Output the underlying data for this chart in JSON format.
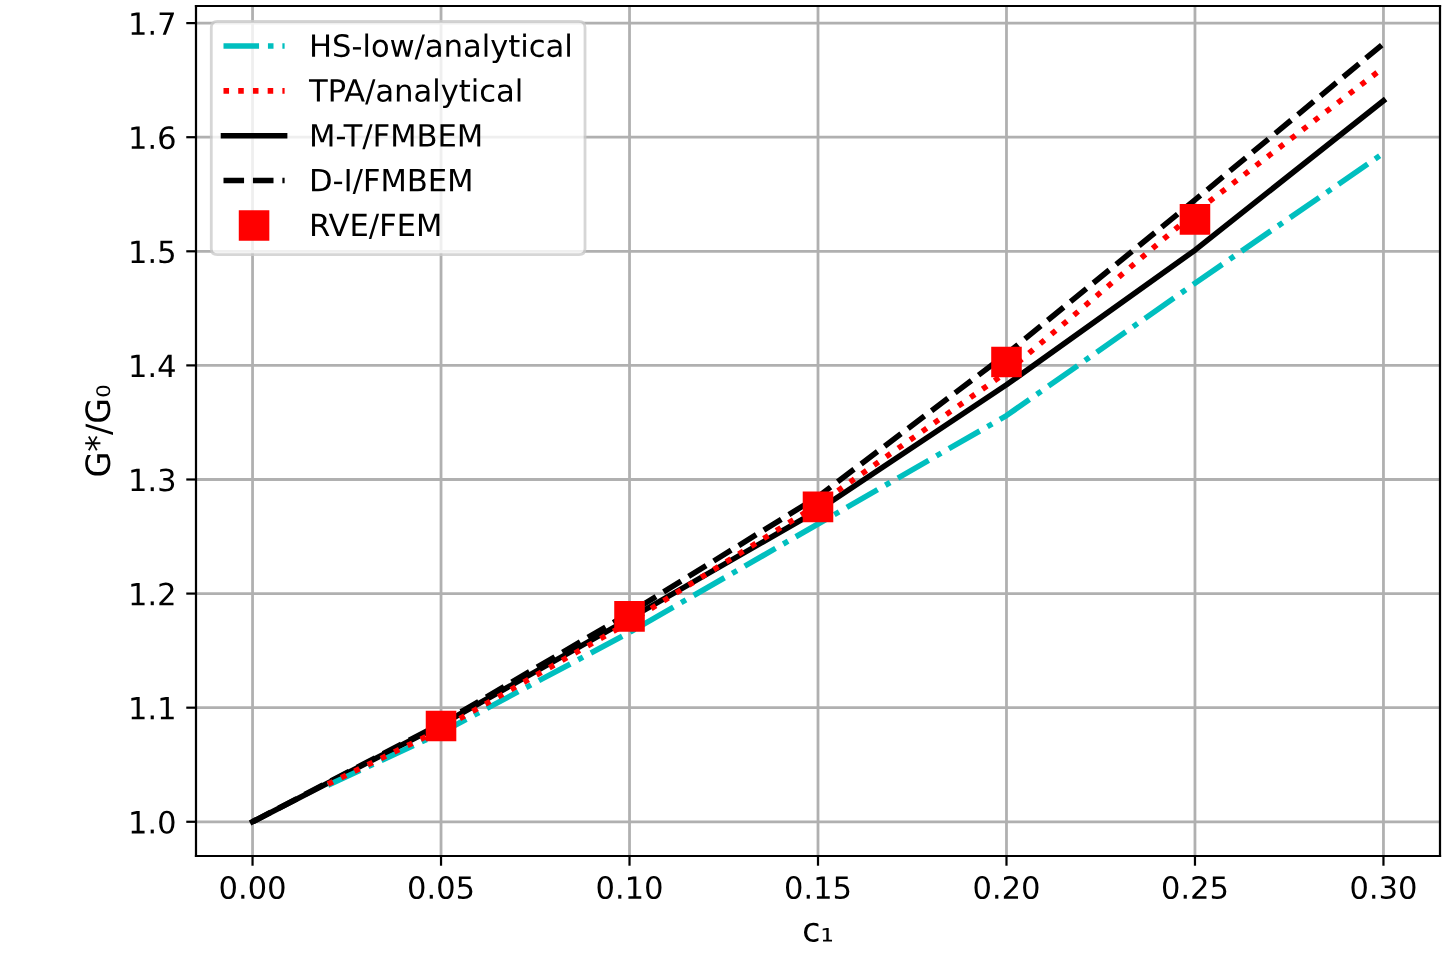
{
  "chart_data": {
    "type": "line",
    "xlabel": "c₁",
    "ylabel": "G*/G₀",
    "x": [
      0,
      0.05,
      0.1,
      0.15,
      0.2,
      0.25,
      0.3
    ],
    "series": [
      {
        "name": "HS-low/analytical",
        "color": "#00bfbf",
        "line_style": "dashdot",
        "x": [
          0.02,
          0.05,
          0.1,
          0.15,
          0.2,
          0.25,
          0.3
        ],
        "values": [
          1.032,
          1.078,
          1.166,
          1.261,
          1.356,
          1.472,
          1.586
        ]
      },
      {
        "name": "TPA/analytical",
        "color": "#ff0000",
        "line_style": "dotted",
        "x": [
          0.02,
          0.05,
          0.1,
          0.15,
          0.2,
          0.25,
          0.3
        ],
        "values": [
          1.033,
          1.081,
          1.175,
          1.278,
          1.394,
          1.534,
          1.661
        ]
      },
      {
        "name": "M-T/FMBEM",
        "color": "#000000",
        "line_style": "solid",
        "values": [
          1.0,
          1.085,
          1.178,
          1.273,
          1.383,
          1.501,
          1.632
        ]
      },
      {
        "name": "D-I/FMBEM",
        "color": "#000000",
        "line_style": "dashed",
        "values": [
          1.0,
          1.086,
          1.183,
          1.285,
          1.41,
          1.545,
          1.682
        ]
      },
      {
        "name": "RVE/FEM",
        "type": "scatter",
        "marker": "square",
        "color": "#ff0000",
        "x": [
          0.05,
          0.1,
          0.15,
          0.2,
          0.25
        ],
        "values": [
          1.084,
          1.18,
          1.276,
          1.403,
          1.528
        ]
      }
    ],
    "xlim": [
      -0.015,
      0.315
    ],
    "ylim": [
      0.97,
      1.715
    ],
    "xticks": [
      {
        "value": 0,
        "label": "0.00"
      },
      {
        "value": 0.05,
        "label": "0.05"
      },
      {
        "value": 0.1,
        "label": "0.10"
      },
      {
        "value": 0.15,
        "label": "0.15"
      },
      {
        "value": 0.2,
        "label": "0.20"
      },
      {
        "value": 0.25,
        "label": "0.25"
      },
      {
        "value": 0.3,
        "label": "0.30"
      }
    ],
    "yticks": [
      {
        "value": 1.0,
        "label": "1.0"
      },
      {
        "value": 1.1,
        "label": "1.1"
      },
      {
        "value": 1.2,
        "label": "1.2"
      },
      {
        "value": 1.3,
        "label": "1.3"
      },
      {
        "value": 1.4,
        "label": "1.4"
      },
      {
        "value": 1.5,
        "label": "1.5"
      },
      {
        "value": 1.6,
        "label": "1.6"
      },
      {
        "value": 1.7,
        "label": "1.7"
      }
    ],
    "grid": true,
    "legend": "top left"
  }
}
